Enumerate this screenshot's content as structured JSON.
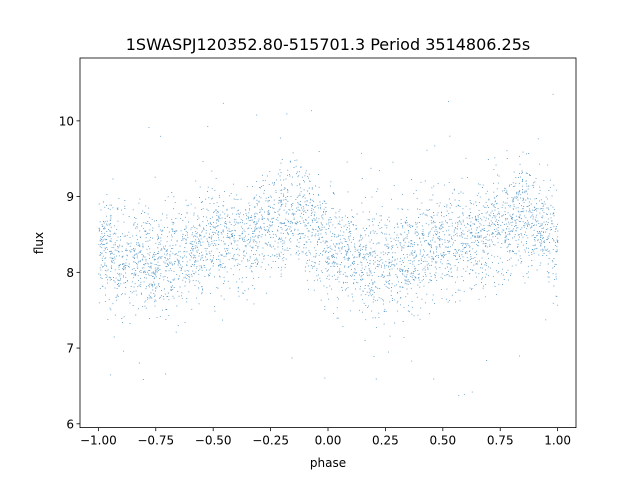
{
  "chart_data": {
    "type": "scatter",
    "title": "1SWASPJ120352.80-515701.3 Period 3514806.25s",
    "xlabel": "phase",
    "ylabel": "flux",
    "xlim": [
      -1.08,
      1.08
    ],
    "ylim": [
      5.95,
      10.83
    ],
    "xticks": [
      -1.0,
      -0.75,
      -0.5,
      -0.25,
      0.0,
      0.25,
      0.5,
      0.75,
      1.0
    ],
    "xtick_labels": [
      "−1.00",
      "−0.75",
      "−0.50",
      "−0.25",
      "0.00",
      "0.25",
      "0.50",
      "0.75",
      "1.00"
    ],
    "yticks": [
      6,
      7,
      8,
      9,
      10
    ],
    "ytick_labels": [
      "6",
      "7",
      "8",
      "9",
      "10"
    ],
    "grid": false,
    "point_color": "#1f77b4",
    "series": [
      {
        "phase_bins": [
          -1.0,
          -0.875,
          -0.75,
          -0.625,
          -0.5,
          -0.375,
          -0.25,
          -0.125,
          0.0,
          0.125,
          0.25,
          0.375,
          0.5,
          0.625,
          0.75,
          0.875,
          1.0
        ],
        "median_flux": [
          8.35,
          8.15,
          8.1,
          8.25,
          8.45,
          8.4,
          8.6,
          8.75,
          8.35,
          8.15,
          8.1,
          8.25,
          8.45,
          8.4,
          8.6,
          8.75,
          8.35
        ],
        "flux_spread": [
          0.33,
          0.33,
          0.35,
          0.35,
          0.33,
          0.33,
          0.33,
          0.35,
          0.35,
          0.35,
          0.35,
          0.35,
          0.33,
          0.33,
          0.33,
          0.35,
          0.33
        ],
        "point_count": 16000
      }
    ]
  }
}
